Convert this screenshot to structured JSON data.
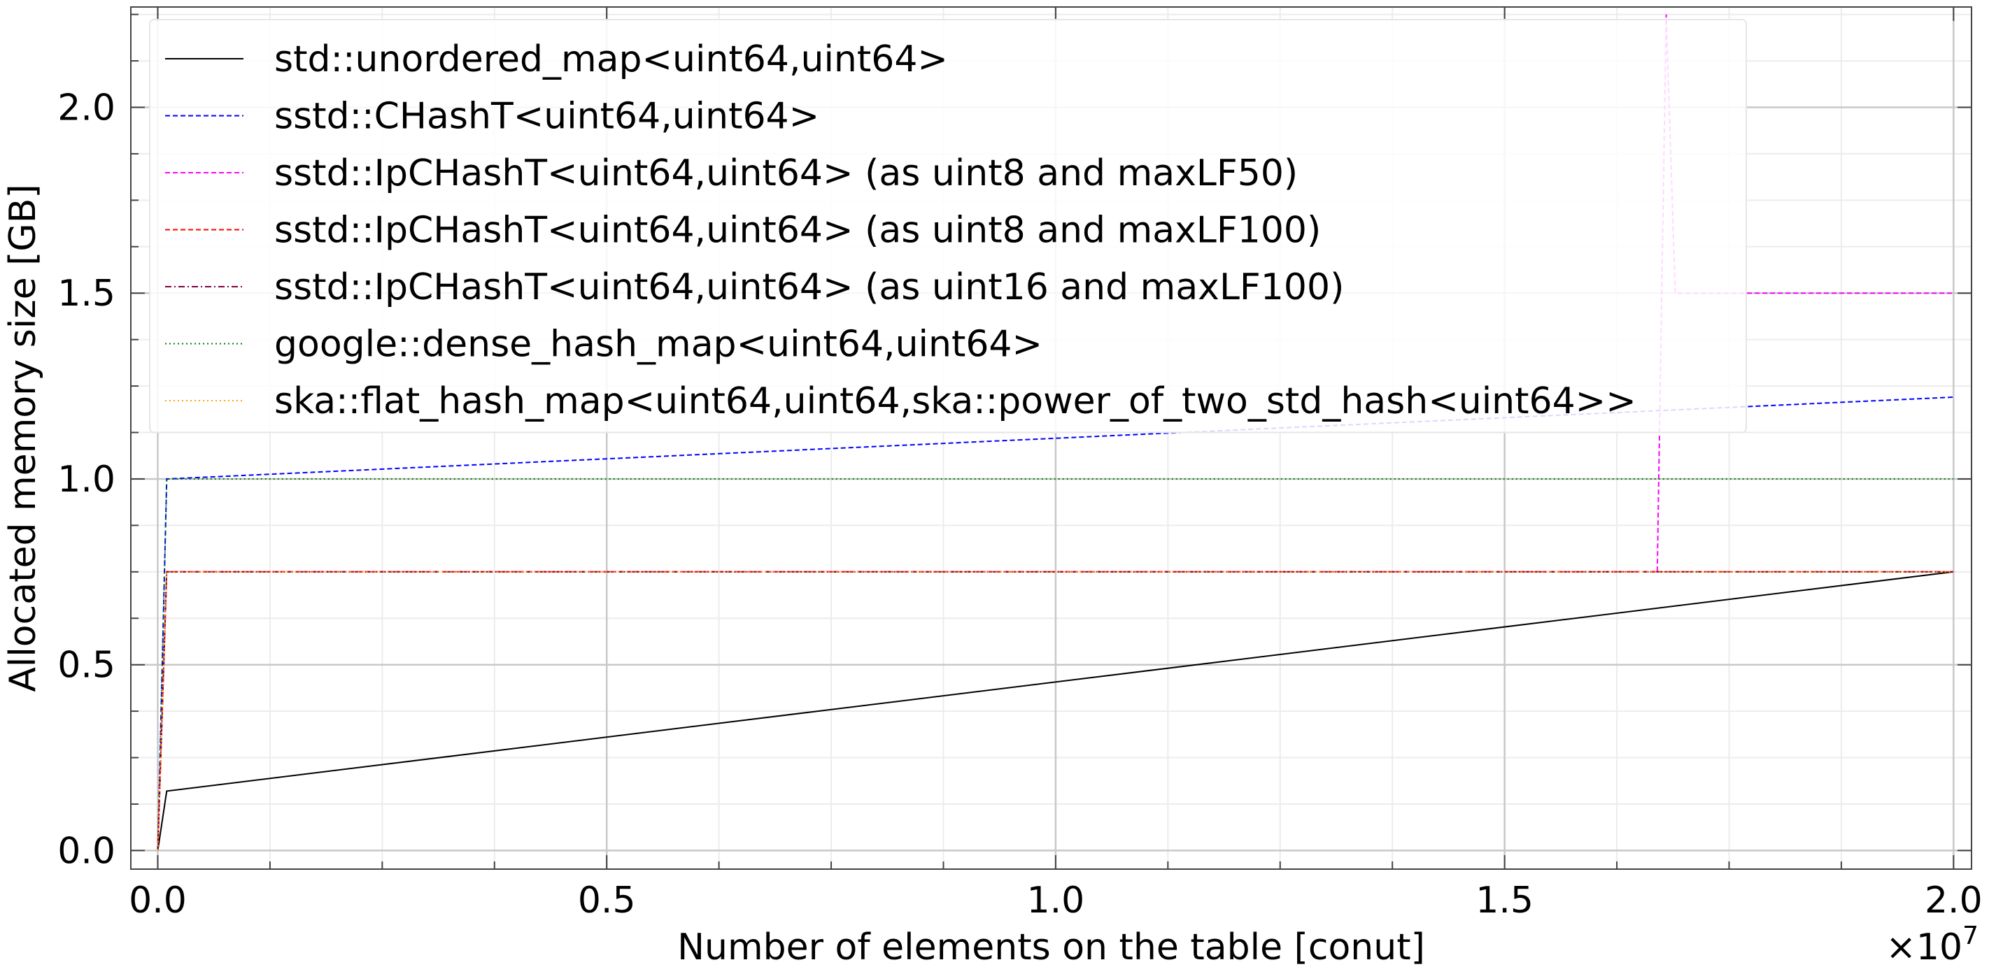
{
  "chart_data": {
    "type": "line",
    "xlabel": "Number of elements on the table [conut]",
    "ylabel": "Allocated memory size [GB]",
    "x_offset_label": "×10",
    "x_offset_exponent": "7",
    "xlim": [
      -0.03,
      2.02
    ],
    "ylim": [
      -0.05,
      2.27
    ],
    "x_ticks": [
      {
        "value": 0.0,
        "label": "0.0"
      },
      {
        "value": 0.5,
        "label": "0.5"
      },
      {
        "value": 1.0,
        "label": "1.0"
      },
      {
        "value": 1.5,
        "label": "1.5"
      },
      {
        "value": 2.0,
        "label": "2.0"
      }
    ],
    "y_ticks": [
      {
        "value": 0.0,
        "label": "0.0"
      },
      {
        "value": 0.5,
        "label": "0.5"
      },
      {
        "value": 1.0,
        "label": "1.0"
      },
      {
        "value": 1.5,
        "label": "1.5"
      },
      {
        "value": 2.0,
        "label": "2.0"
      }
    ],
    "grid": true,
    "legend_position": "top-left",
    "series": [
      {
        "name": "std::unordered_map<uint64,uint64>",
        "color": "#000000",
        "dash": "solid",
        "x": [
          0.0,
          0.01,
          2.0
        ],
        "y": [
          0.0,
          0.16,
          0.75
        ]
      },
      {
        "name": "sstd::CHashT<uint64,uint64>",
        "color": "#0000ff",
        "dash": "dashed",
        "x": [
          0.0,
          0.01,
          2.0
        ],
        "y": [
          0.0,
          1.0,
          1.22
        ]
      },
      {
        "name": "sstd::IpCHashT<uint64,uint64> (as uint8 and maxLF50)",
        "color": "#ff00ff",
        "dash": "dashed",
        "x": [
          0.0,
          0.01,
          1.67,
          1.68,
          1.69,
          2.0
        ],
        "y": [
          0.0,
          0.75,
          0.75,
          2.25,
          1.5,
          1.5
        ]
      },
      {
        "name": "sstd::IpCHashT<uint64,uint64> (as uint8 and maxLF100)",
        "color": "#ff0000",
        "dash": "dashed",
        "x": [
          0.0,
          0.01,
          2.0
        ],
        "y": [
          0.0,
          0.75,
          0.75
        ]
      },
      {
        "name": "sstd::IpCHashT<uint64,uint64> (as uint16 and maxLF100)",
        "color": "#800040",
        "dash": "dashdot",
        "x": [
          0.0,
          0.01,
          2.0
        ],
        "y": [
          0.0,
          0.75,
          0.75
        ]
      },
      {
        "name": "google::dense_hash_map<uint64,uint64>",
        "color": "#008000",
        "dash": "dotted",
        "x": [
          0.0,
          0.01,
          2.0
        ],
        "y": [
          0.0,
          1.0,
          1.0
        ]
      },
      {
        "name": "ska::flat_hash_map<uint64,uint64,ska::power_of_two_std_hash<uint64>>",
        "color": "#ffa500",
        "dash": "dotted",
        "x": [
          0.0,
          0.01,
          2.0
        ],
        "y": [
          0.0,
          0.75,
          0.75
        ]
      }
    ]
  }
}
